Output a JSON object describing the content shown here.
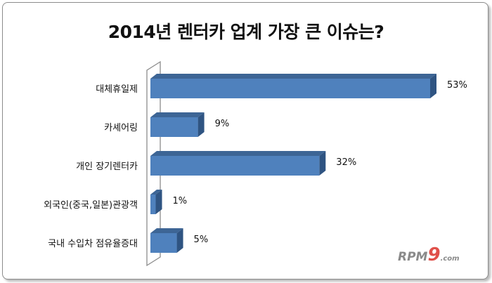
{
  "chart_data": {
    "type": "bar",
    "orientation": "horizontal",
    "style": "3d",
    "title": "2014년 렌터카 업계 가장 큰 이슈는?",
    "categories": [
      "대체휴일제",
      "카셰어링",
      "개인 장기렌터카",
      "외국인(중국,일본)관광객",
      "국내 수입차 점유율증대"
    ],
    "values": [
      53,
      9,
      32,
      1,
      5
    ],
    "data_labels": [
      "53%",
      "9%",
      "32%",
      "1%",
      "5%"
    ],
    "unit": "%",
    "xlim": [
      0,
      53
    ],
    "grid": false,
    "legend": "none",
    "colors": {
      "bar_front": "#4f81bd",
      "bar_top": "#3d6595",
      "bar_side": "#2f5482",
      "wall": "#8c8c8c"
    }
  },
  "watermark": {
    "text": "RPM9.com",
    "brand": "RPM",
    "nine": "9",
    "suffix": ".com"
  }
}
